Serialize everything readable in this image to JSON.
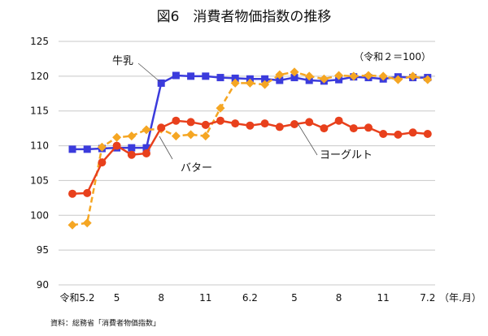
{
  "chart_data": {
    "type": "line",
    "title": "図6　消費者物価指数の推移",
    "note": "（令和２＝100）",
    "source": "資料：総務省「消費者物価指数」",
    "x_unit_label": "（年.月）",
    "x_tick_labels": [
      "令和5.2",
      "5",
      "8",
      "11",
      "6.2",
      "5",
      "8",
      "11",
      "7.2"
    ],
    "x_tick_index": [
      0,
      3,
      6,
      9,
      12,
      15,
      18,
      21,
      24
    ],
    "ylim": [
      90,
      125
    ],
    "y_ticks": [
      90,
      95,
      100,
      105,
      110,
      115,
      120,
      125
    ],
    "grid": true,
    "series": [
      {
        "name": "牛乳",
        "color": "#3b3bdc",
        "marker": "square",
        "dash": false,
        "values": [
          109.5,
          109.5,
          109.6,
          109.7,
          109.7,
          109.7,
          119.0,
          120.1,
          120.0,
          120.0,
          119.8,
          119.7,
          119.6,
          119.6,
          119.4,
          119.8,
          119.4,
          119.3,
          119.5,
          119.9,
          119.8,
          119.6,
          119.9,
          119.8,
          119.8
        ]
      },
      {
        "name": "バター",
        "color": "#f5a623",
        "marker": "diamond",
        "dash": true,
        "values": [
          98.6,
          98.9,
          109.8,
          111.2,
          111.4,
          112.3,
          112.4,
          111.4,
          111.6,
          111.4,
          115.4,
          119.0,
          119.0,
          118.8,
          120.2,
          120.6,
          120.0,
          119.6,
          120.1,
          120.0,
          120.1,
          120.0,
          119.5,
          120.0,
          119.5
        ]
      },
      {
        "name": "ヨーグルト",
        "color": "#e8401c",
        "marker": "circle",
        "dash": false,
        "values": [
          103.1,
          103.2,
          107.6,
          110.0,
          108.7,
          108.9,
          112.6,
          113.6,
          113.4,
          113.0,
          113.6,
          113.2,
          112.9,
          113.2,
          112.7,
          113.1,
          113.4,
          112.5,
          113.6,
          112.5,
          112.6,
          111.7,
          111.6,
          111.9,
          111.7
        ]
      }
    ]
  }
}
